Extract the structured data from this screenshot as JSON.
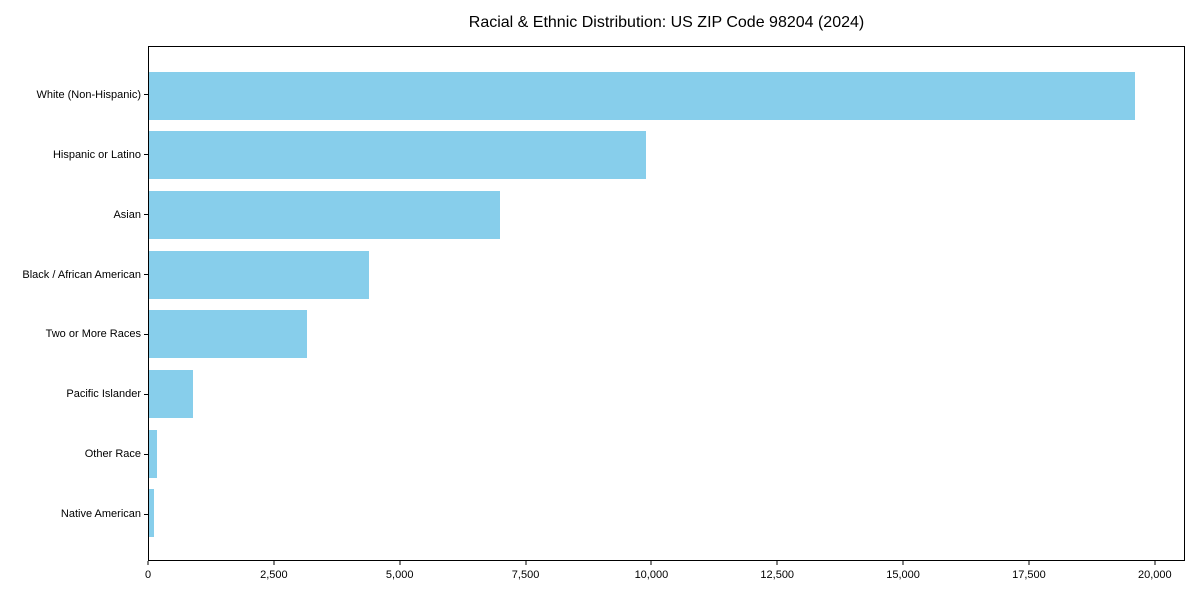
{
  "chart_data": {
    "type": "bar",
    "orientation": "horizontal",
    "title": "Racial & Ethnic Distribution: US ZIP Code 98204 (2024)",
    "categories": [
      "White (Non-Hispanic)",
      "Hispanic or Latino",
      "Asian",
      "Black / African American",
      "Two or More Races",
      "Pacific Islander",
      "Other Race",
      "Native American"
    ],
    "values": [
      19630,
      9890,
      6990,
      4370,
      3140,
      875,
      155,
      90
    ],
    "xlabel": "",
    "ylabel": "",
    "xlim": [
      0,
      20600
    ],
    "x_ticks": [
      0,
      2500,
      5000,
      7500,
      10000,
      12500,
      15000,
      17500,
      20000
    ],
    "x_tick_labels": [
      "0",
      "2,500",
      "5,000",
      "7,500",
      "10,000",
      "12,500",
      "15,000",
      "17,500",
      "20,000"
    ],
    "bar_color": "#87CEEB",
    "axis_color": "#000000",
    "background_color": "#ffffff",
    "grid": false,
    "legend": null
  }
}
